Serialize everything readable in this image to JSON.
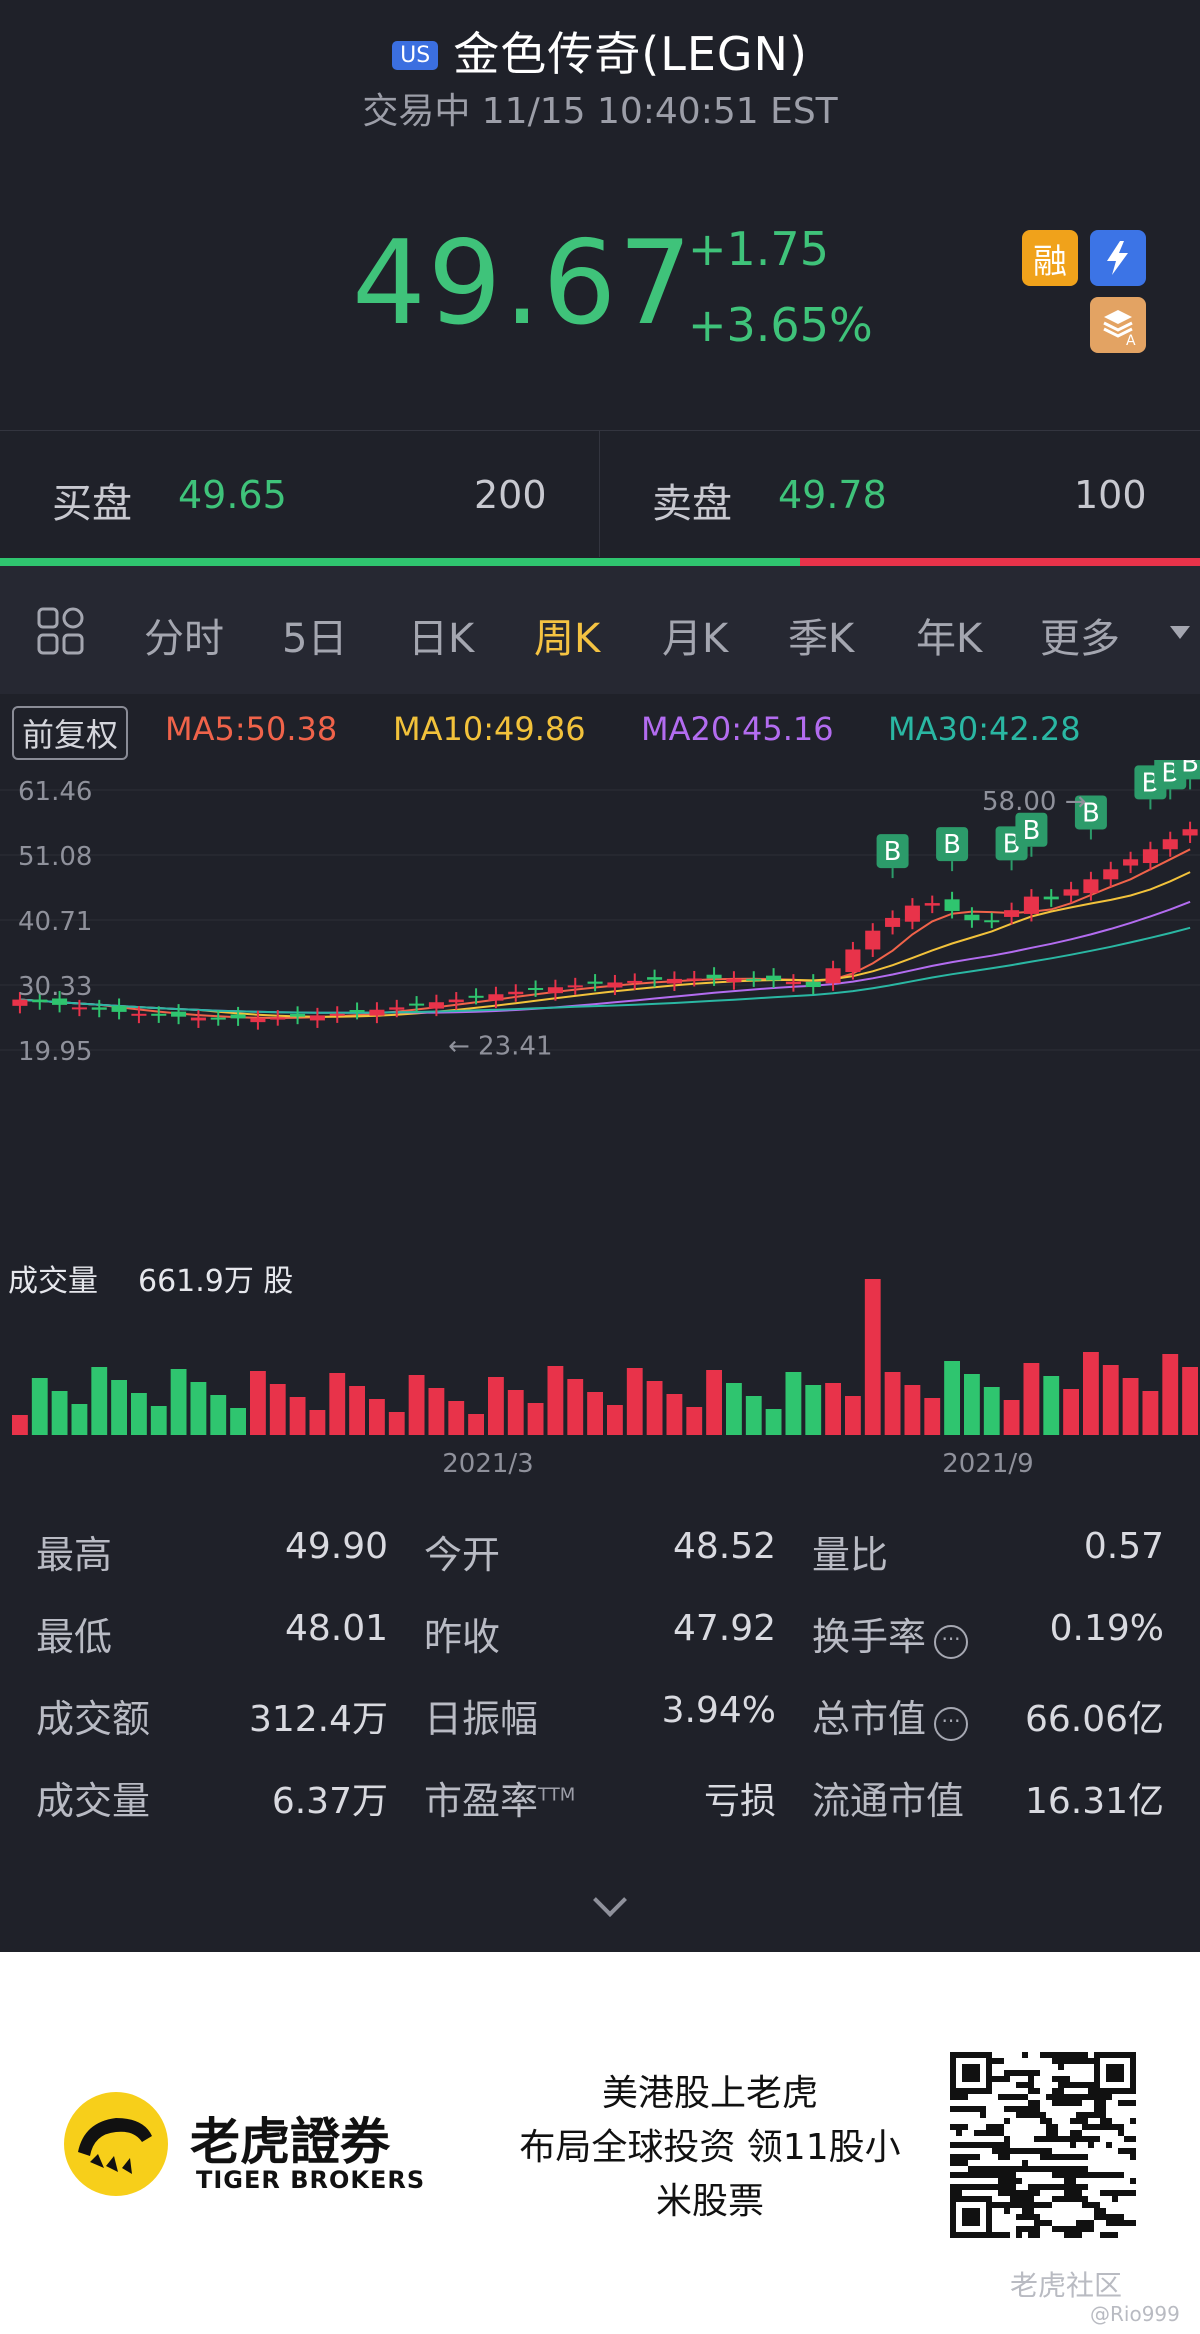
{
  "header": {
    "market_badge": "US",
    "title": "金色传奇(LEGN)",
    "status": "交易中 11/15 10:40:51 EST",
    "last_price": "49.67",
    "change_abs": "+1.75",
    "change_pct": "+3.65%",
    "icons": {
      "margin": "融",
      "flash": "⚡",
      "stack": "A"
    }
  },
  "bid_ask": {
    "bid_label": "买盘",
    "bid_price": "49.65",
    "bid_volume": "200",
    "ask_label": "卖盘",
    "ask_price": "49.78",
    "ask_volume": "100",
    "bid_ratio": 0.667
  },
  "tabs": [
    {
      "label": "分时",
      "active": false
    },
    {
      "label": "5日",
      "active": false
    },
    {
      "label": "日K",
      "active": false
    },
    {
      "label": "周K",
      "active": true
    },
    {
      "label": "月K",
      "active": false
    },
    {
      "label": "季K",
      "active": false
    },
    {
      "label": "年K",
      "active": false
    },
    {
      "label": "更多",
      "active": false
    }
  ],
  "chart_controls": {
    "adjust_label": "前复权",
    "ma": [
      {
        "label": "MA5:50.38",
        "color": "#f0634a"
      },
      {
        "label": "MA10:49.86",
        "color": "#f2c23b"
      },
      {
        "label": "MA20:45.16",
        "color": "#b36cf0"
      },
      {
        "label": "MA30:42.28",
        "color": "#2ab7a3"
      }
    ]
  },
  "chart_data": {
    "type": "candlestick",
    "y_ticks": [
      "61.46",
      "51.08",
      "40.71",
      "30.33",
      "19.95"
    ],
    "ylim": [
      19.95,
      61.46
    ],
    "x_ticks": [
      "2021/3",
      "2021/9"
    ],
    "annotations": {
      "high_label": "58.00",
      "low_label": "23.41",
      "signal_marker": "B"
    },
    "colors": {
      "up": "#e8334a",
      "down": "#2fc56f"
    },
    "volume_label": "成交量",
    "volume_value": "661.9万 股"
  },
  "stats": {
    "rows": [
      [
        {
          "label": "最高",
          "value": "49.90"
        },
        {
          "label": "今开",
          "value": "48.52"
        },
        {
          "label": "量比",
          "value": "0.57"
        }
      ],
      [
        {
          "label": "最低",
          "value": "48.01"
        },
        {
          "label": "昨收",
          "value": "47.92"
        },
        {
          "label": "换手率",
          "value": "0.19%",
          "info": true
        }
      ],
      [
        {
          "label": "成交额",
          "value": "312.4万"
        },
        {
          "label": "日振幅",
          "value": "3.94%"
        },
        {
          "label": "总市值",
          "value": "66.06亿",
          "info": true
        }
      ],
      [
        {
          "label": "成交量",
          "value": "6.37万"
        },
        {
          "label": "市盈率",
          "label_sup": "TTM",
          "value": "亏损"
        },
        {
          "label": "流通市值",
          "value": "16.31亿"
        }
      ]
    ]
  },
  "footer": {
    "brand_cn": "老虎證券",
    "brand_en": "TIGER BROKERS",
    "promo_lines": [
      "美港股上老虎",
      "布局全球投资 领11股小",
      "米股票"
    ],
    "watermark": "老虎社区",
    "watermark_user": "@Rio999"
  }
}
